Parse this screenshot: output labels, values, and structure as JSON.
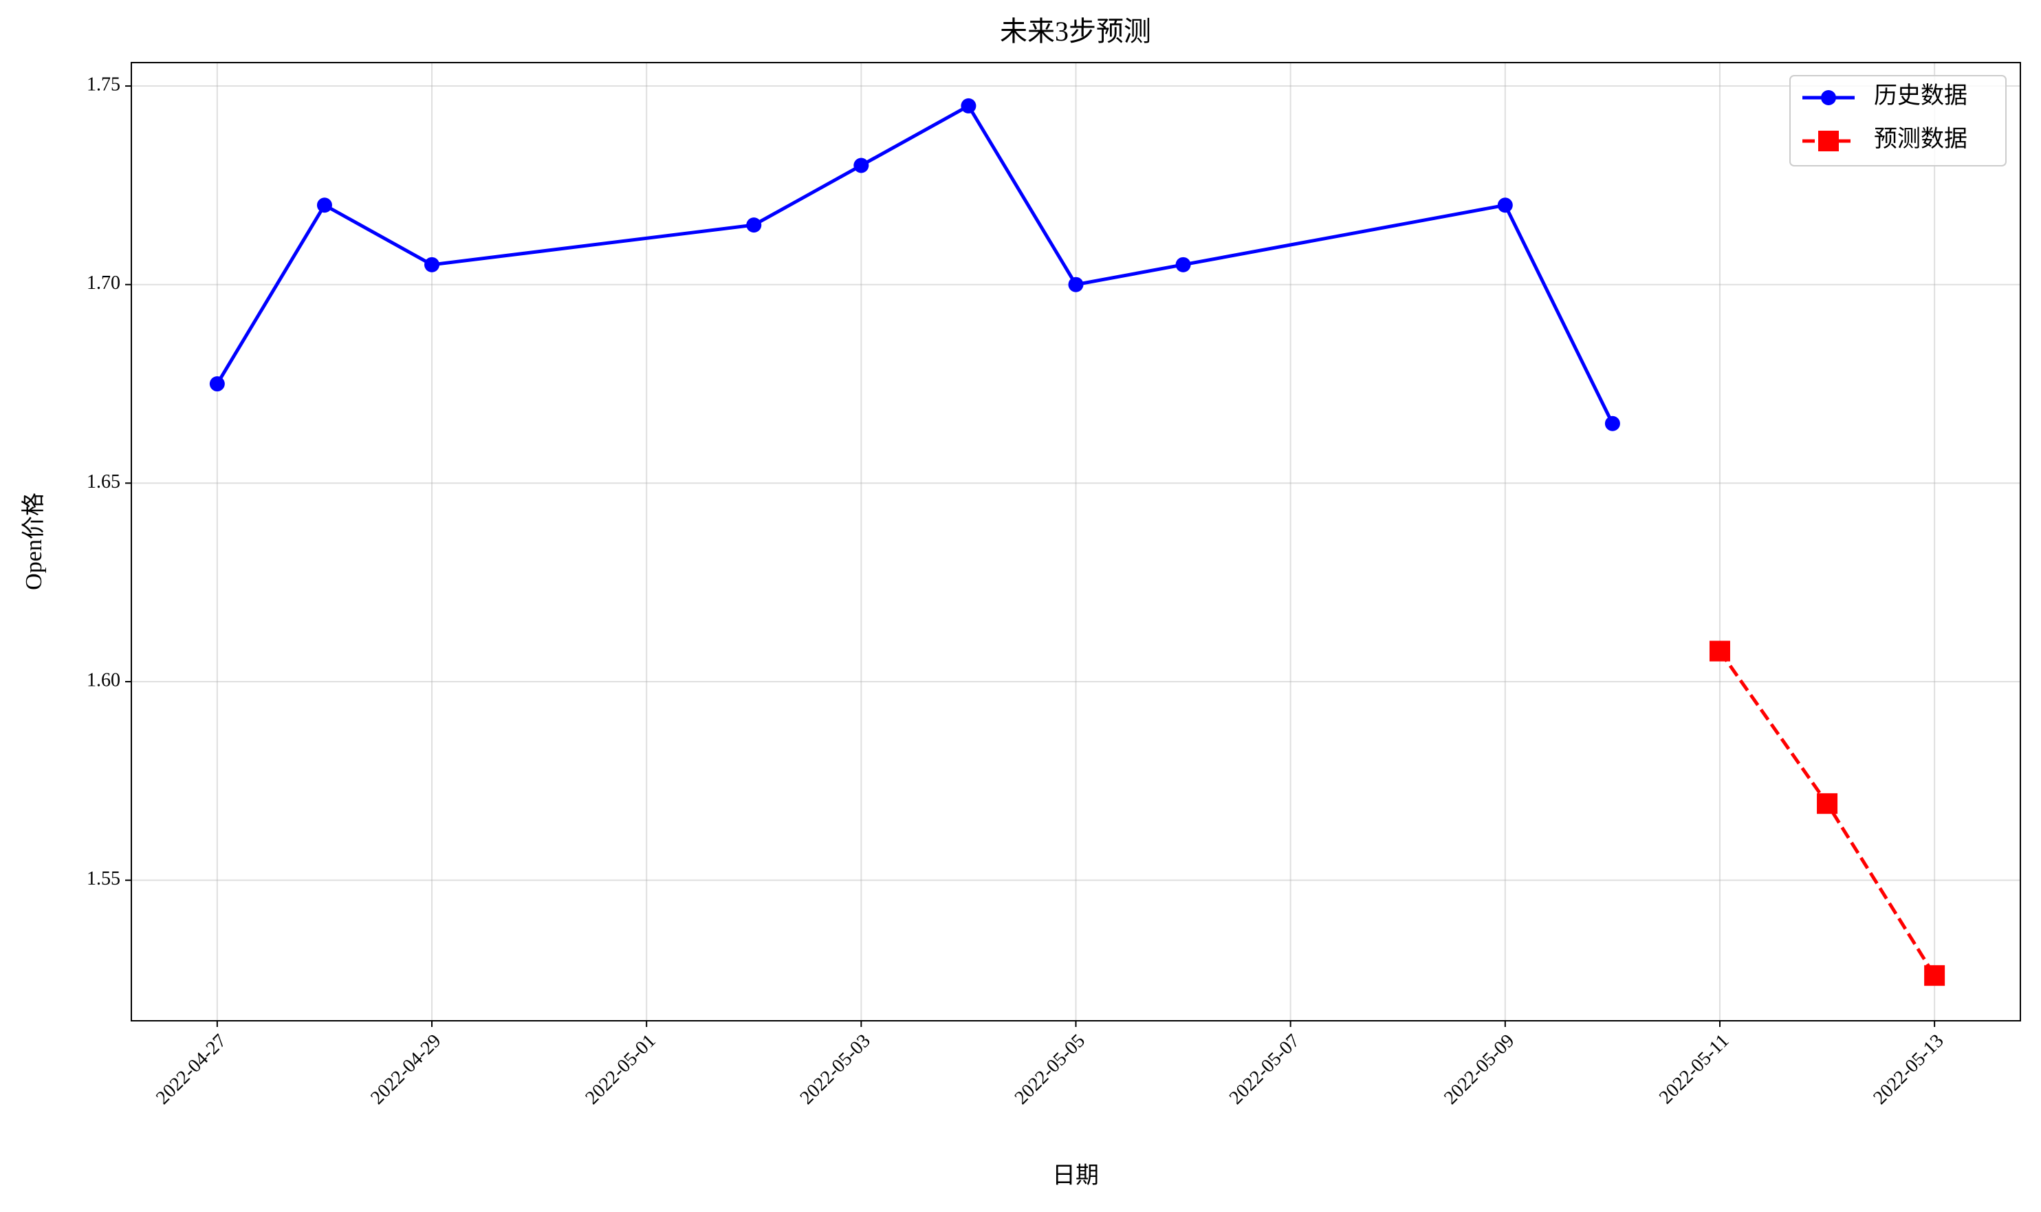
{
  "chart_data": {
    "type": "line",
    "title": "未来3步预测",
    "xlabel": "日期",
    "ylabel": "Open价格",
    "series": [
      {
        "name": "历史数据",
        "color": "#0000ff",
        "marker": "circle",
        "linestyle": "solid",
        "x": [
          "2022-04-27",
          "2022-04-28",
          "2022-04-29",
          "2022-05-02",
          "2022-05-03",
          "2022-05-04",
          "2022-05-05",
          "2022-05-06",
          "2022-05-09",
          "2022-05-10"
        ],
        "values": [
          1.675,
          1.72,
          1.705,
          1.715,
          1.73,
          1.745,
          1.7,
          1.705,
          1.72,
          1.665
        ]
      },
      {
        "name": "预测数据",
        "color": "#ff0000",
        "marker": "square",
        "linestyle": "dashed",
        "x": [
          "2022-05-11",
          "2022-05-12",
          "2022-05-13"
        ],
        "values": [
          1.6077,
          1.5693,
          1.526
        ]
      }
    ],
    "xlim": [
      "2022-04-26T04:48",
      "2022-05-13T19:12"
    ],
    "xticks": [
      "2022-04-27",
      "2022-04-29",
      "2022-05-01",
      "2022-05-03",
      "2022-05-05",
      "2022-05-07",
      "2022-05-09",
      "2022-05-11",
      "2022-05-13"
    ],
    "ylim": [
      1.5146,
      1.7559
    ],
    "yticks": [
      {
        "value": 1.55,
        "label": "1.55"
      },
      {
        "value": 1.6,
        "label": "1.60"
      },
      {
        "value": 1.65,
        "label": "1.65"
      },
      {
        "value": 1.7,
        "label": "1.70"
      },
      {
        "value": 1.75,
        "label": "1.75"
      }
    ],
    "grid": true,
    "legend": "upper right"
  }
}
